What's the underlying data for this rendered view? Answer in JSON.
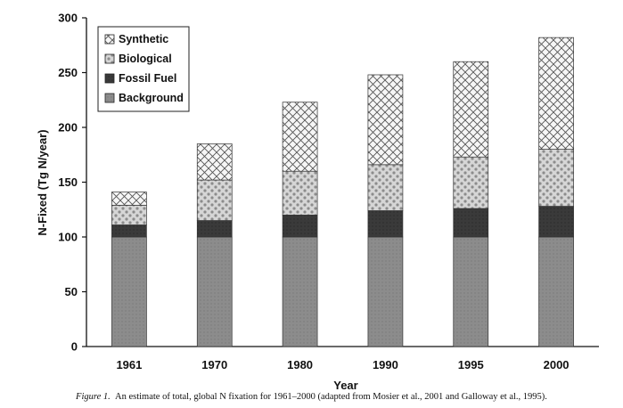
{
  "chart_data": {
    "type": "bar",
    "stacked": true,
    "xlabel": "Year",
    "ylabel": "N-Fixed (Tg N/year)",
    "ylim": [
      0,
      300
    ],
    "yticks": [
      0,
      50,
      100,
      150,
      200,
      250,
      300
    ],
    "categories": [
      "1961",
      "1970",
      "1980",
      "1990",
      "1995",
      "2000"
    ],
    "series": [
      {
        "name": "Background",
        "values": [
          100,
          100,
          100,
          100,
          100,
          100
        ],
        "color": "#8a8a8a",
        "pattern": "solid-grey"
      },
      {
        "name": "Fossil Fuel",
        "values": [
          11,
          15,
          20,
          24,
          26,
          28
        ],
        "color": "#3a3a3a",
        "pattern": "solid-dark"
      },
      {
        "name": "Biological",
        "values": [
          18,
          37,
          40,
          42,
          47,
          52
        ],
        "color": "#c9c9c9",
        "pattern": "dots"
      },
      {
        "name": "Synthetic",
        "values": [
          12,
          33,
          63,
          82,
          87,
          102
        ],
        "color": "#f2f2f2",
        "pattern": "crosshatch"
      }
    ],
    "legend_position": "top-left",
    "grid": false
  },
  "caption": {
    "label": "Figure 1.",
    "text": "An estimate of total, global N fixation for 1961–2000 (adapted from Mosier et al., 2001 and Galloway et al., 1995)."
  }
}
